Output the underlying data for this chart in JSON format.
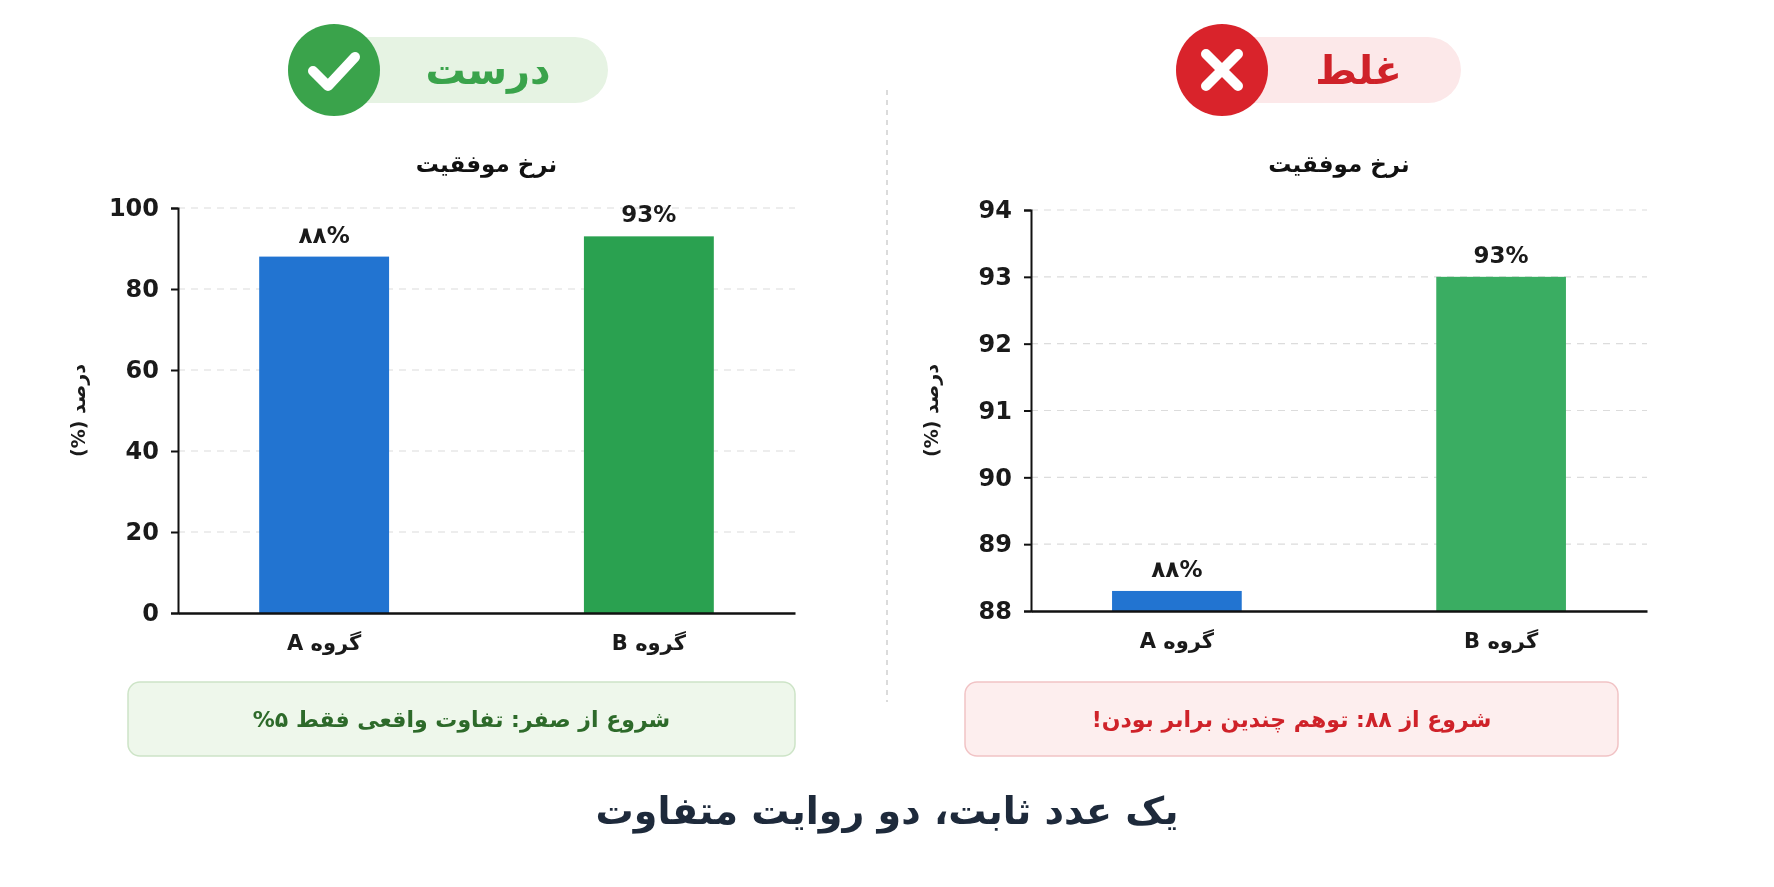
{
  "chart_data": [
    {
      "type": "bar",
      "title": "نرخ موفقیت",
      "ylabel": "درصد (%)",
      "categories": [
        "گروه A",
        "گروه B"
      ],
      "values": [
        88,
        93
      ],
      "colors": [
        "#2274d1",
        "#2aa150"
      ],
      "value_labels": [
        "۸۸%",
        "93%"
      ],
      "ylim": [
        0,
        100
      ],
      "yticks": [
        0,
        20,
        40,
        60,
        80,
        100
      ],
      "grid": "y",
      "annotations": [
        "درست",
        "شروع از صفر: تفاوت واقعی فقط ۵%"
      ]
    },
    {
      "type": "bar",
      "title": "نرخ موفقیت",
      "ylabel": "درصد (%)",
      "categories": [
        "گروه A",
        "گروه B"
      ],
      "values": [
        88.3,
        93
      ],
      "colors": [
        "#2274d1",
        "#3aad62"
      ],
      "value_labels": [
        "۸۸%",
        "93%"
      ],
      "ylim": [
        88,
        94
      ],
      "yticks": [
        88,
        89,
        90,
        91,
        92,
        93,
        94
      ],
      "grid": "y",
      "annotations": [
        "غلط",
        "شروع از ۸۸: توهم چندین برابر بودن!"
      ]
    },
    {
      "type": "other",
      "title": "یک عدد ثابت، دو روایت متفاوت"
    }
  ]
}
